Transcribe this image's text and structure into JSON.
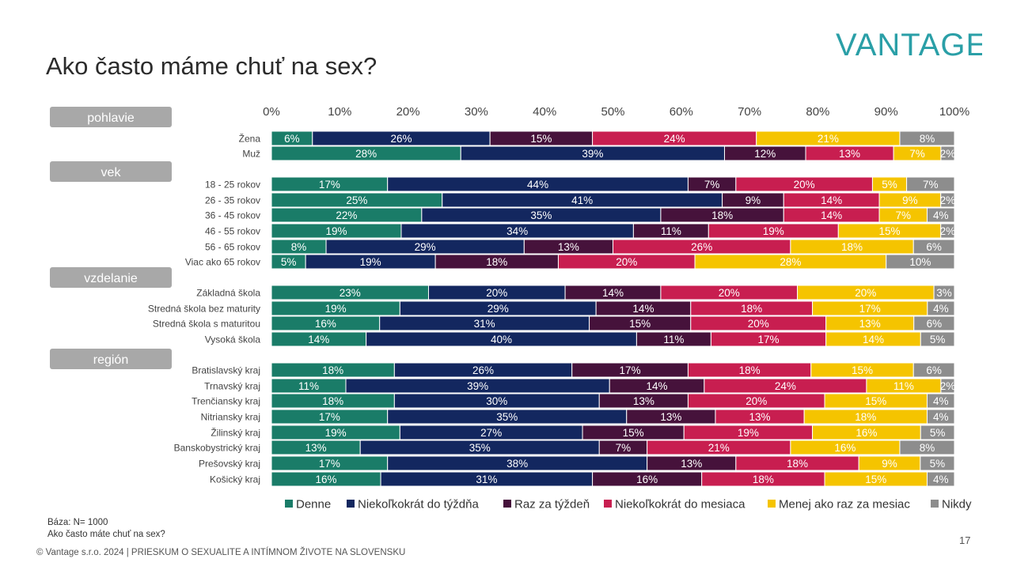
{
  "title": "Ako často máme chuť na sex?",
  "brand": "VANTAGE",
  "base_label": "Báza: N= 1000",
  "base_question": "Ako často máte chuť na sex?",
  "footer": "© Vantage s.r.o. 2024 | PRIESKUM O SEXUALITE A INTÍMNOM ŽIVOTE NA SLOVENSKU",
  "page_number": "17",
  "colors": {
    "Denne": "#1a7c68",
    "Niekoľkokrát do týždňa": "#13275f",
    "Raz za týždeň": "#46123b",
    "Niekoľkokrát do mesiaca": "#c81e50",
    "Menej ako raz za mesiac": "#f5c400",
    "Nikdy": "#8d8d8d",
    "group_box": "#a8a8a8",
    "brand": "#2a9fa7"
  },
  "chart_data": {
    "type": "bar",
    "orientation": "horizontal-stacked-100",
    "title": "Ako často máme chuť na sex?",
    "x_ticks": [
      "0%",
      "10%",
      "20%",
      "30%",
      "40%",
      "50%",
      "60%",
      "70%",
      "80%",
      "90%",
      "100%"
    ],
    "xlim": [
      0,
      100
    ],
    "series_names": [
      "Denne",
      "Niekoľkokrát do týždňa",
      "Raz za týždeň",
      "Niekoľkokrát do mesiaca",
      "Menej ako raz za mesiac",
      "Nikdy"
    ],
    "groups": [
      {
        "label": "pohlavie",
        "rows": [
          {
            "label": "Žena",
            "values": [
              6,
              26,
              15,
              24,
              21,
              8
            ]
          },
          {
            "label": "Muž",
            "values": [
              28,
              39,
              12,
              13,
              7,
              2
            ]
          }
        ]
      },
      {
        "label": "vek",
        "rows": [
          {
            "label": "18 - 25 rokov",
            "values": [
              17,
              44,
              7,
              20,
              5,
              7
            ]
          },
          {
            "label": "26 - 35 rokov",
            "values": [
              25,
              41,
              9,
              14,
              9,
              2
            ]
          },
          {
            "label": "36 - 45 rokov",
            "values": [
              22,
              35,
              18,
              14,
              7,
              4
            ]
          },
          {
            "label": "46 - 55 rokov",
            "values": [
              19,
              34,
              11,
              19,
              15,
              2
            ]
          },
          {
            "label": "56 - 65 rokov",
            "values": [
              8,
              29,
              13,
              26,
              18,
              6
            ]
          },
          {
            "label": "Viac ako 65 rokov",
            "values": [
              5,
              19,
              18,
              20,
              28,
              10
            ]
          }
        ]
      },
      {
        "label": "vzdelanie",
        "rows": [
          {
            "label": "Základná škola",
            "values": [
              23,
              20,
              14,
              20,
              20,
              3
            ]
          },
          {
            "label": "Stredná škola bez maturity",
            "values": [
              19,
              29,
              14,
              18,
              17,
              4
            ]
          },
          {
            "label": "Stredná škola s maturitou",
            "values": [
              16,
              31,
              15,
              20,
              13,
              6
            ]
          },
          {
            "label": "Vysoká škola",
            "values": [
              14,
              40,
              11,
              17,
              14,
              5
            ]
          }
        ]
      },
      {
        "label": "región",
        "rows": [
          {
            "label": "Bratislavský kraj",
            "values": [
              18,
              26,
              17,
              18,
              15,
              6
            ]
          },
          {
            "label": "Trnavský kraj",
            "values": [
              11,
              39,
              14,
              24,
              11,
              2
            ]
          },
          {
            "label": "Trenčiansky kraj",
            "values": [
              18,
              30,
              13,
              20,
              15,
              4
            ]
          },
          {
            "label": "Nitriansky kraj",
            "values": [
              17,
              35,
              13,
              13,
              18,
              4
            ]
          },
          {
            "label": "Žilinský kraj",
            "values": [
              19,
              27,
              15,
              19,
              16,
              5
            ]
          },
          {
            "label": "Banskobystrický kraj",
            "values": [
              13,
              35,
              7,
              21,
              16,
              8
            ]
          },
          {
            "label": "Prešovský kraj",
            "values": [
              17,
              38,
              13,
              18,
              9,
              5
            ]
          },
          {
            "label": "Košický kraj",
            "values": [
              16,
              31,
              16,
              18,
              15,
              4
            ]
          }
        ]
      }
    ]
  }
}
